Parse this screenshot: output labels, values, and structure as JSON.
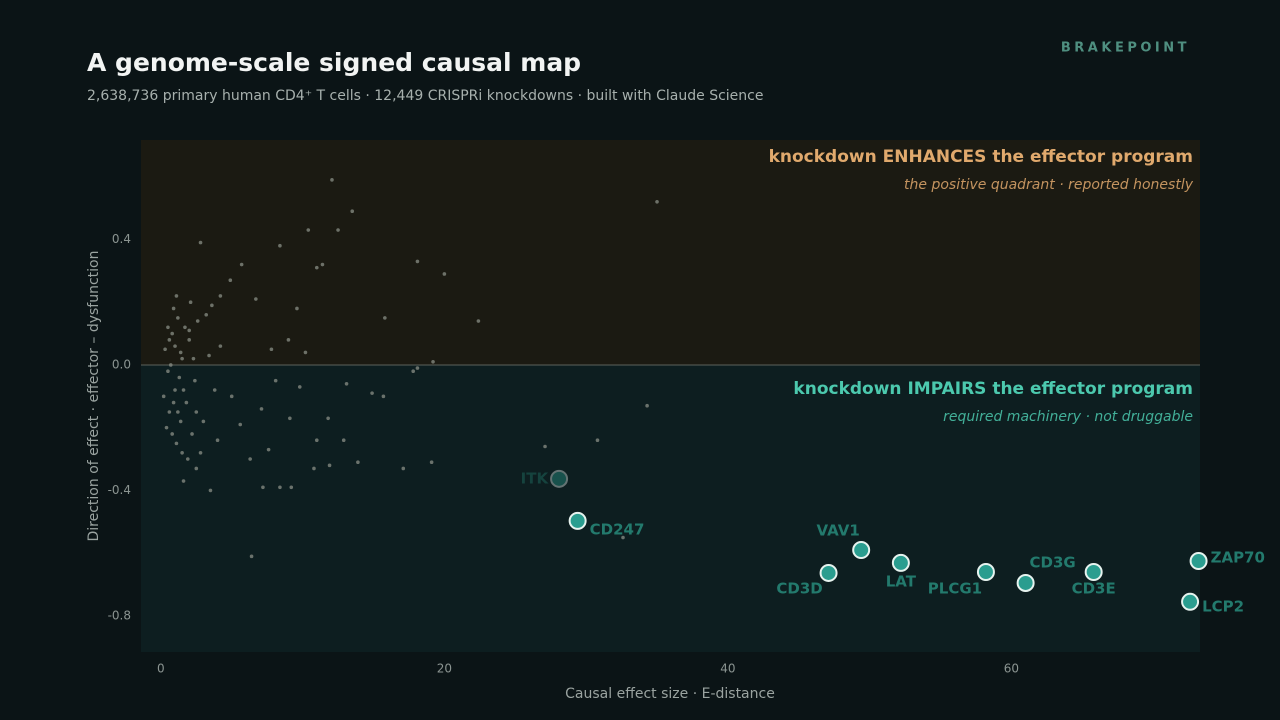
{
  "brand": "BRAKEPOINT",
  "chart_data": {
    "type": "scatter",
    "title": "A genome-scale signed causal map",
    "subtitle": "2,638,736 primary human CD4⁺ T cells · 12,449 CRISPRi knockdowns · built with Claude Science",
    "x_label": "Causal effect size · E-distance",
    "y_label": "Direction of effect · effector – dysfunction",
    "annotations": [
      {
        "text": "knockdown ENHANCES the effector program",
        "note": "the positive quadrant · reported honestly",
        "color": "#e0a96d"
      },
      {
        "text": "knockdown IMPAIRS the effector program",
        "note": "required machinery · not druggable",
        "color": "#4cc9ae"
      }
    ],
    "xlim": [
      -1.4,
      73.3
    ],
    "ylim": [
      -0.915,
      0.717
    ],
    "xticks": [
      0,
      20,
      40,
      60
    ],
    "yticks": [
      0.4,
      {
        "value": 0,
        "label": "0.0"
      },
      -0.4,
      -0.8
    ],
    "series": [
      {
        "color": "#8a8f86",
        "x": [
          12.07,
          13.5,
          35.0,
          12.5,
          10.4,
          8.4,
          11.4,
          11.0,
          18.1,
          20.0,
          22.4,
          15.8,
          9.6,
          19.2,
          18.1,
          17.8,
          14.9,
          15.7,
          34.3,
          27.1,
          30.8,
          32.6,
          6.4,
          17.1,
          19.1,
          13.9,
          11.9,
          10.8,
          9.2,
          8.4,
          3.5,
          7.2,
          12.9,
          11.0,
          11.8,
          13.1,
          9.8,
          7.6,
          6.3,
          5.6,
          7.1,
          9.1,
          10.2,
          9.0,
          7.8,
          6.7,
          5.7,
          4.9,
          4.2,
          2.8,
          3.6,
          2.0,
          8.1,
          5.0,
          4.0,
          2.5,
          1.6,
          0.3,
          0.5,
          0.8,
          1.0,
          1.2,
          0.6,
          1.5,
          1.8,
          2.0,
          0.4,
          1.1,
          2.4,
          2.6,
          3.0,
          0.9,
          1.4,
          1.7,
          0.2,
          2.2,
          3.4,
          0.7,
          1.3,
          1.9,
          2.8,
          0.5,
          1.6,
          2.1,
          3.2,
          0.9,
          1.0,
          1.2,
          0.6,
          1.4,
          2.5,
          3.8,
          4.2,
          0.8,
          1.1,
          1.5,
          2.3
        ],
        "y": [
          0.59,
          0.49,
          0.52,
          0.43,
          0.43,
          0.38,
          0.32,
          0.31,
          0.33,
          0.29,
          0.14,
          0.15,
          0.18,
          0.01,
          -0.01,
          -0.02,
          -0.09,
          -0.1,
          -0.13,
          -0.26,
          -0.24,
          -0.55,
          -0.61,
          -0.33,
          -0.31,
          -0.31,
          -0.32,
          -0.33,
          -0.39,
          -0.39,
          -0.4,
          -0.39,
          -0.24,
          -0.24,
          -0.17,
          -0.06,
          -0.07,
          -0.27,
          -0.3,
          -0.19,
          -0.14,
          -0.17,
          0.04,
          0.08,
          0.05,
          0.21,
          0.32,
          0.27,
          0.22,
          0.39,
          0.19,
          0.11,
          -0.05,
          -0.1,
          -0.24,
          -0.33,
          -0.37,
          0.05,
          -0.02,
          0.1,
          -0.08,
          0.15,
          -0.15,
          0.02,
          -0.12,
          0.08,
          -0.2,
          -0.25,
          -0.05,
          0.14,
          -0.18,
          0.18,
          -0.18,
          0.12,
          -0.1,
          -0.22,
          0.03,
          0.0,
          -0.04,
          -0.3,
          -0.28,
          0.12,
          -0.08,
          0.2,
          0.16,
          -0.12,
          0.06,
          -0.15,
          0.08,
          0.04,
          -0.15,
          -0.08,
          0.06,
          -0.22,
          0.22,
          -0.28,
          0.02
        ]
      },
      {
        "color": "#2a9d8f",
        "labels": [
          "ITK",
          "CD247",
          "VAV1",
          "CD3D",
          "LAT",
          "PLCG1",
          "CD3G",
          "CD3E",
          "ZAP70",
          "LCP2"
        ],
        "x": [
          28.09,
          29.4,
          49.4,
          47.1,
          52.2,
          58.2,
          61.0,
          65.8,
          73.2,
          72.6
        ],
        "y": [
          -0.363,
          -0.497,
          -0.59,
          -0.663,
          -0.631,
          -0.66,
          -0.695,
          -0.66,
          -0.625,
          -0.755
        ]
      }
    ]
  }
}
